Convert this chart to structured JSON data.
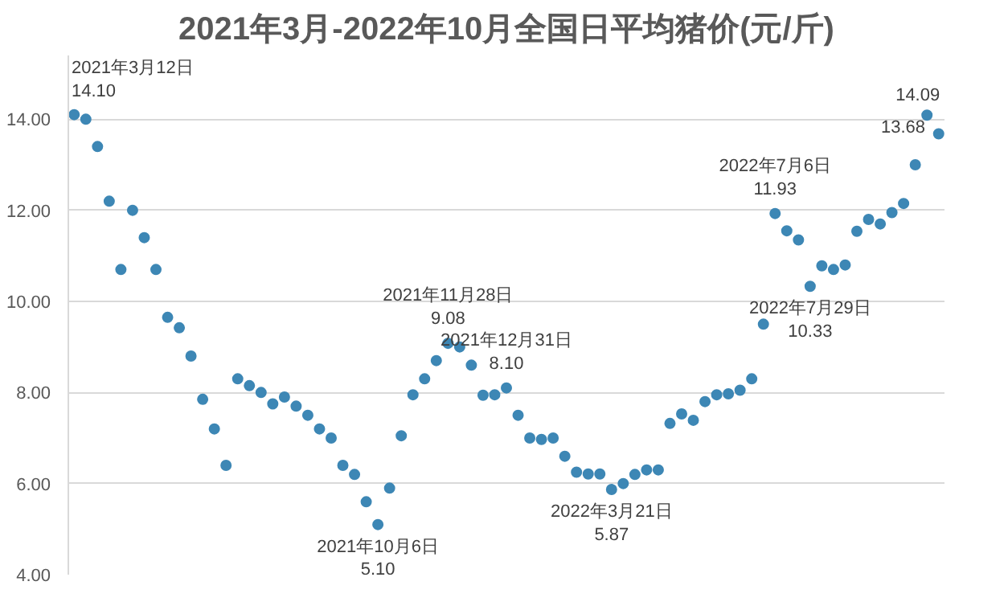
{
  "chart_data": {
    "type": "scatter",
    "title": "2021年3月-2022年10月全国日平均猪价(元/斤)",
    "categories": [
      null,
      null,
      null,
      null,
      null,
      null,
      null,
      null,
      null,
      null,
      null,
      null,
      null,
      null,
      null,
      null,
      null,
      null,
      null,
      null,
      null,
      null,
      null,
      null,
      null,
      null,
      null,
      null,
      null,
      null,
      null,
      null,
      null,
      null,
      null,
      null,
      null,
      null,
      null,
      null,
      null,
      null,
      null,
      null,
      null,
      null,
      null,
      null,
      null,
      null,
      null,
      null,
      null,
      null,
      null,
      null,
      null,
      null,
      null,
      null,
      null,
      null,
      null,
      null,
      null,
      null,
      null,
      null,
      null,
      null,
      null,
      null,
      null,
      null,
      null
    ],
    "series": [
      {
        "color": "#3d87b5",
        "values": [
          14.1,
          14.0,
          13.4,
          12.2,
          10.7,
          12.0,
          11.4,
          10.7,
          9.65,
          9.42,
          8.8,
          7.85,
          7.2,
          6.4,
          8.3,
          8.15,
          8.0,
          7.75,
          7.9,
          7.7,
          7.5,
          7.2,
          7.0,
          6.4,
          6.2,
          5.6,
          5.1,
          5.9,
          7.05,
          7.95,
          8.3,
          8.7,
          9.08,
          9.0,
          8.6,
          7.94,
          7.95,
          8.1,
          7.5,
          7.0,
          6.97,
          7.0,
          6.6,
          6.25,
          6.21,
          6.21,
          5.87,
          6.0,
          6.2,
          6.3,
          6.3,
          7.32,
          7.53,
          7.39,
          7.8,
          7.95,
          7.97,
          8.05,
          8.3,
          9.5,
          11.93,
          11.55,
          11.35,
          10.33,
          10.78,
          10.7,
          10.8,
          11.54,
          11.8,
          11.7,
          11.95,
          12.15,
          13.0,
          14.09,
          13.68
        ]
      }
    ],
    "marker": "circle",
    "ylim": [
      4,
      15.4
    ],
    "yticks": [
      {
        "value": 4,
        "label": "4.00"
      },
      {
        "value": 6,
        "label": "6.00"
      },
      {
        "value": 8,
        "label": "8.00"
      },
      {
        "value": 10,
        "label": "10.00"
      },
      {
        "value": 12,
        "label": "12.00"
      },
      {
        "value": 14,
        "label": "14.00"
      }
    ],
    "tick_labels": "y",
    "grid": "y",
    "annotations": [
      "2021年3月12日\n14.10",
      {
        "text": "2021年10月6日\n5.10",
        "y": 5.1
      },
      {
        "text": "2021年11月28日\n9.08",
        "y": 9.08
      },
      {
        "text": "2021年12月31日\n8.10",
        "y": 8.1
      },
      {
        "text": "2022年3月21日\n5.87",
        "y": 5.87
      },
      {
        "text": "2022年7月6日\n11.93",
        "y": 11.93
      },
      {
        "text": "2022年7月29日\n10.33",
        "y": 10.33
      },
      {
        "text": "14.09",
        "y": 14.09
      },
      "13.68"
    ]
  }
}
